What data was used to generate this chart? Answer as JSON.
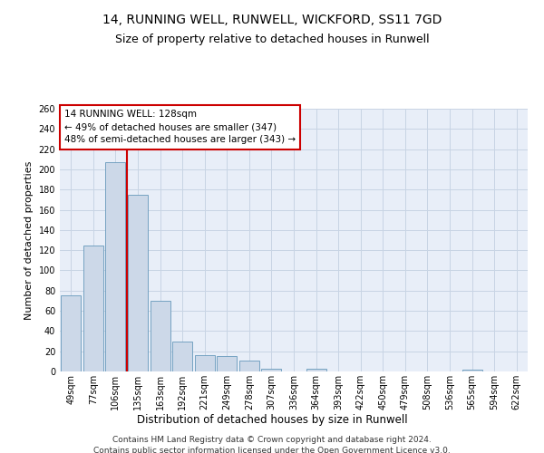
{
  "title": "14, RUNNING WELL, RUNWELL, WICKFORD, SS11 7GD",
  "subtitle": "Size of property relative to detached houses in Runwell",
  "xlabel": "Distribution of detached houses by size in Runwell",
  "ylabel": "Number of detached properties",
  "categories": [
    "49sqm",
    "77sqm",
    "106sqm",
    "135sqm",
    "163sqm",
    "192sqm",
    "221sqm",
    "249sqm",
    "278sqm",
    "307sqm",
    "336sqm",
    "364sqm",
    "393sqm",
    "422sqm",
    "450sqm",
    "479sqm",
    "508sqm",
    "536sqm",
    "565sqm",
    "594sqm",
    "622sqm"
  ],
  "values": [
    75,
    125,
    207,
    175,
    70,
    30,
    16,
    15,
    11,
    3,
    0,
    3,
    0,
    0,
    0,
    0,
    0,
    0,
    2,
    0,
    0
  ],
  "bar_color": "#ccd8e8",
  "bar_edgecolor": "#6699bb",
  "vline_color": "#cc0000",
  "vline_pos": 2.5,
  "annotation_text": "14 RUNNING WELL: 128sqm\n← 49% of detached houses are smaller (347)\n48% of semi-detached houses are larger (343) →",
  "annotation_box_facecolor": "#ffffff",
  "annotation_box_edgecolor": "#cc0000",
  "ylim": [
    0,
    260
  ],
  "yticks": [
    0,
    20,
    40,
    60,
    80,
    100,
    120,
    140,
    160,
    180,
    200,
    220,
    240,
    260
  ],
  "grid_color": "#c8d4e4",
  "background_color": "#e8eef8",
  "footer_line1": "Contains HM Land Registry data © Crown copyright and database right 2024.",
  "footer_line2": "Contains public sector information licensed under the Open Government Licence v3.0.",
  "title_fontsize": 10,
  "subtitle_fontsize": 9,
  "xlabel_fontsize": 8.5,
  "ylabel_fontsize": 8,
  "tick_fontsize": 7,
  "annotation_fontsize": 7.5,
  "footer_fontsize": 6.5
}
